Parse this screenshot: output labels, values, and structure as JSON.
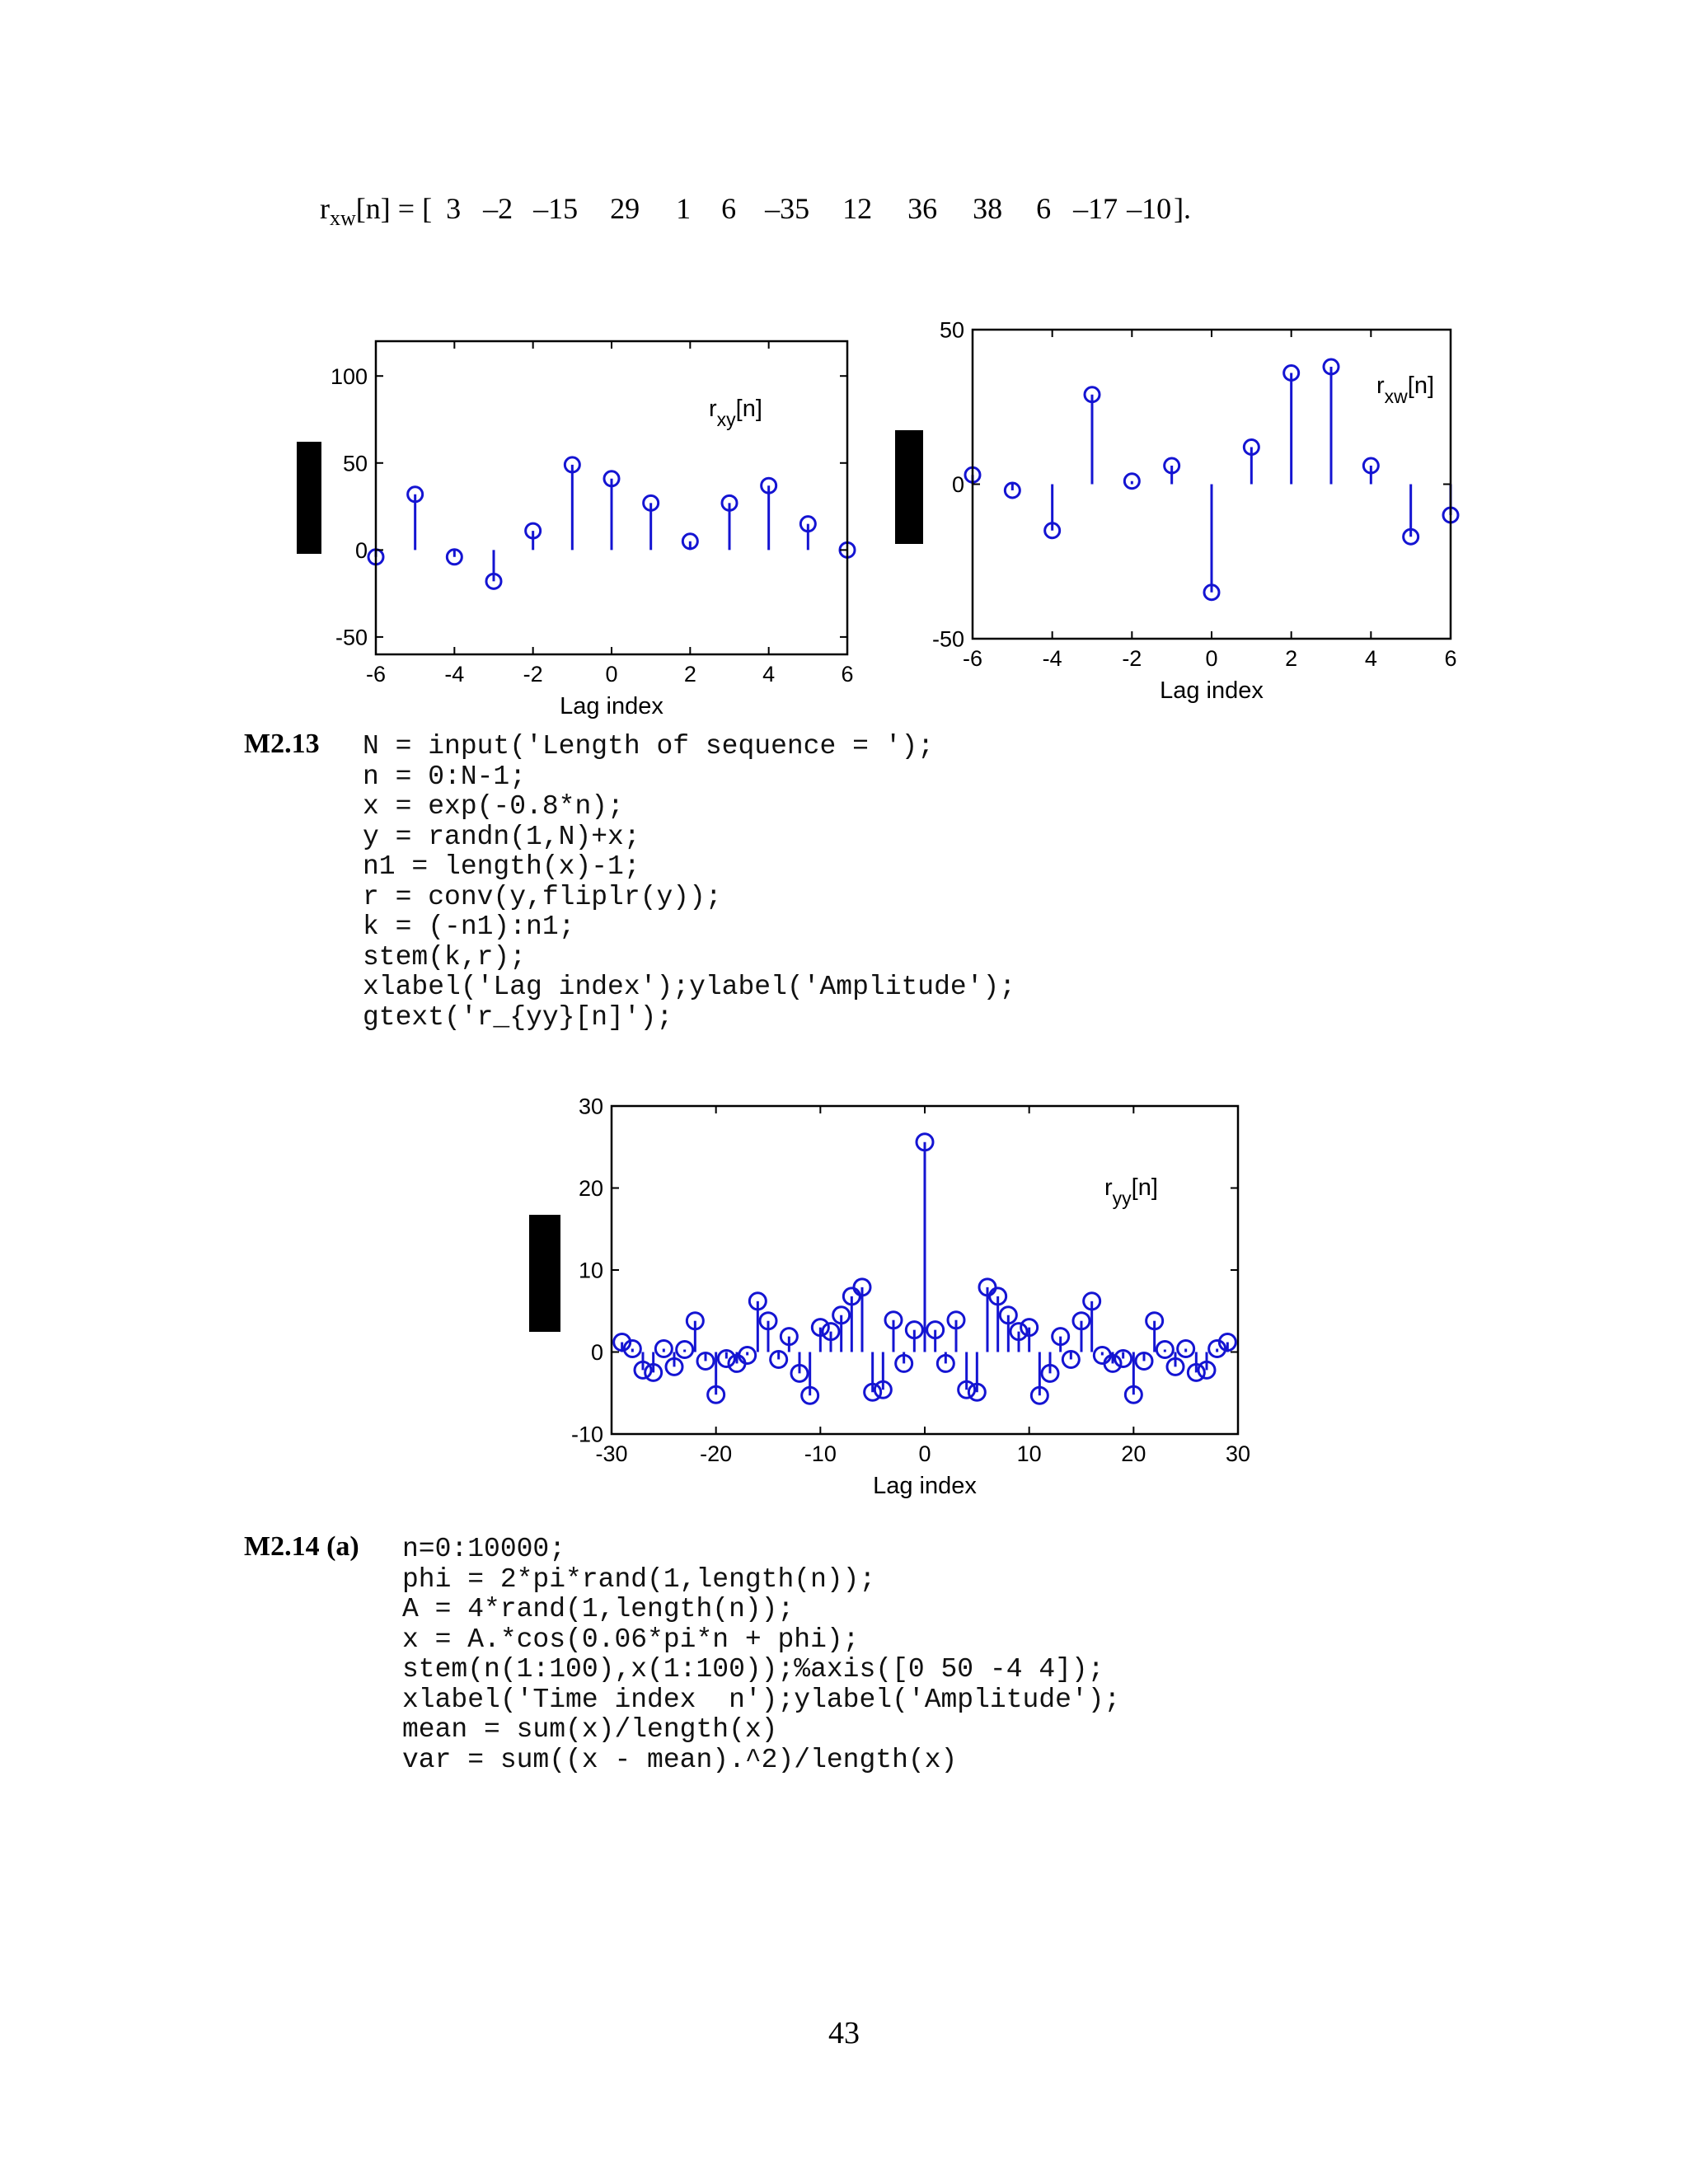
{
  "equation": {
    "lhs": "r",
    "lhs_sub": "xw",
    "lhs_rest": "[n] = ",
    "open": "[",
    "values": [
      "3",
      "–2",
      "–15",
      "29",
      "1",
      "6",
      "–35",
      "12",
      "36",
      "38",
      "6",
      "–17",
      "–10"
    ],
    "close": "]."
  },
  "chart_data": [
    {
      "type": "stem",
      "x": [
        -6,
        -5,
        -4,
        -3,
        -2,
        -1,
        0,
        1,
        2,
        3,
        4,
        5,
        6
      ],
      "values": [
        -4,
        32,
        -4,
        -18,
        11,
        49,
        41,
        27,
        5,
        27,
        37,
        15,
        0
      ],
      "xlim": [
        -6,
        6
      ],
      "ylim": [
        -60,
        120
      ],
      "xticks": [
        -6,
        -4,
        -2,
        0,
        2,
        4,
        6
      ],
      "yticks": [
        -50,
        0,
        50,
        100
      ],
      "xlabel": "Lag index",
      "annotation": {
        "main": "r",
        "sub": "xy",
        "rest": "[n]"
      },
      "color": "#1414d2"
    },
    {
      "type": "stem",
      "x": [
        -6,
        -5,
        -4,
        -3,
        -2,
        -1,
        0,
        1,
        2,
        3,
        4,
        5,
        6
      ],
      "values": [
        3,
        -2,
        -15,
        29,
        1,
        6,
        -35,
        12,
        36,
        38,
        6,
        -17,
        -10
      ],
      "xlim": [
        -6,
        6
      ],
      "ylim": [
        -50,
        50
      ],
      "xticks": [
        -6,
        -4,
        -2,
        0,
        2,
        4,
        6
      ],
      "yticks": [
        -50,
        0,
        50
      ],
      "xlabel": "Lag index",
      "annotation": {
        "main": "r",
        "sub": "xw",
        "rest": "[n]"
      },
      "color": "#1414d2"
    },
    {
      "type": "stem",
      "x": [
        -29,
        -28,
        -27,
        -26,
        -25,
        -24,
        -23,
        -22,
        -21,
        -20,
        -19,
        -18,
        -17,
        -16,
        -15,
        -14,
        -13,
        -12,
        -11,
        -10,
        -9,
        -8,
        -7,
        -6,
        -5,
        -4,
        -3,
        -2,
        -1,
        0,
        1,
        2,
        3,
        4,
        5,
        6,
        7,
        8,
        9,
        10,
        11,
        12,
        13,
        14,
        15,
        16,
        17,
        18,
        19,
        20,
        21,
        22,
        23,
        24,
        25,
        26,
        27,
        28,
        29
      ],
      "values": [
        1.2,
        0.4,
        -2.2,
        -2.5,
        0.4,
        -1.8,
        0.3,
        3.8,
        -1.1,
        -5.2,
        -0.8,
        -1.4,
        -0.4,
        6.2,
        3.8,
        -0.9,
        1.9,
        -2.6,
        -5.3,
        3.0,
        2.5,
        4.5,
        6.8,
        7.9,
        -4.9,
        -4.6,
        3.9,
        -1.4,
        2.7,
        25.6,
        2.7,
        -1.4,
        3.9,
        -4.6,
        -4.9,
        7.9,
        6.8,
        4.5,
        2.5,
        3.0,
        -5.3,
        -2.6,
        1.9,
        -0.9,
        3.8,
        6.2,
        -0.4,
        -1.4,
        -0.8,
        -5.2,
        -1.1,
        3.8,
        0.3,
        -1.8,
        0.4,
        -2.5,
        -2.2,
        0.4,
        1.2
      ],
      "xlim": [
        -30,
        30
      ],
      "ylim": [
        -10,
        30
      ],
      "xticks": [
        -30,
        -20,
        -10,
        0,
        10,
        20,
        30
      ],
      "yticks": [
        -10,
        0,
        10,
        20,
        30
      ],
      "xlabel": "Lag index",
      "annotation": {
        "main": "r",
        "sub": "yy",
        "rest": "[n]"
      },
      "color": "#1414d2"
    }
  ],
  "m2_13": {
    "label": "M2.13",
    "lines": [
      "N = input('Length of sequence = ');",
      "n = 0:N-1;",
      "x = exp(-0.8*n);",
      "y = randn(1,N)+x;",
      "n1 = length(x)-1;",
      "r = conv(y,fliplr(y));",
      "k = (-n1):n1;",
      "stem(k,r);",
      "xlabel('Lag index');ylabel('Amplitude');",
      "gtext('r_{yy}[n]');"
    ]
  },
  "m2_14": {
    "label": "M2.14",
    "part": "(a)",
    "lines": [
      "n=0:10000;",
      "phi = 2*pi*rand(1,length(n));",
      "A = 4*rand(1,length(n));",
      "x = A.*cos(0.06*pi*n + phi);",
      "stem(n(1:100),x(1:100));%axis([0 50 -4 4]);",
      "xlabel('Time index  n');ylabel('Amplitude');",
      "mean = sum(x)/length(x)",
      "var = sum((x - mean).^2)/length(x)"
    ]
  },
  "page_number": "43"
}
